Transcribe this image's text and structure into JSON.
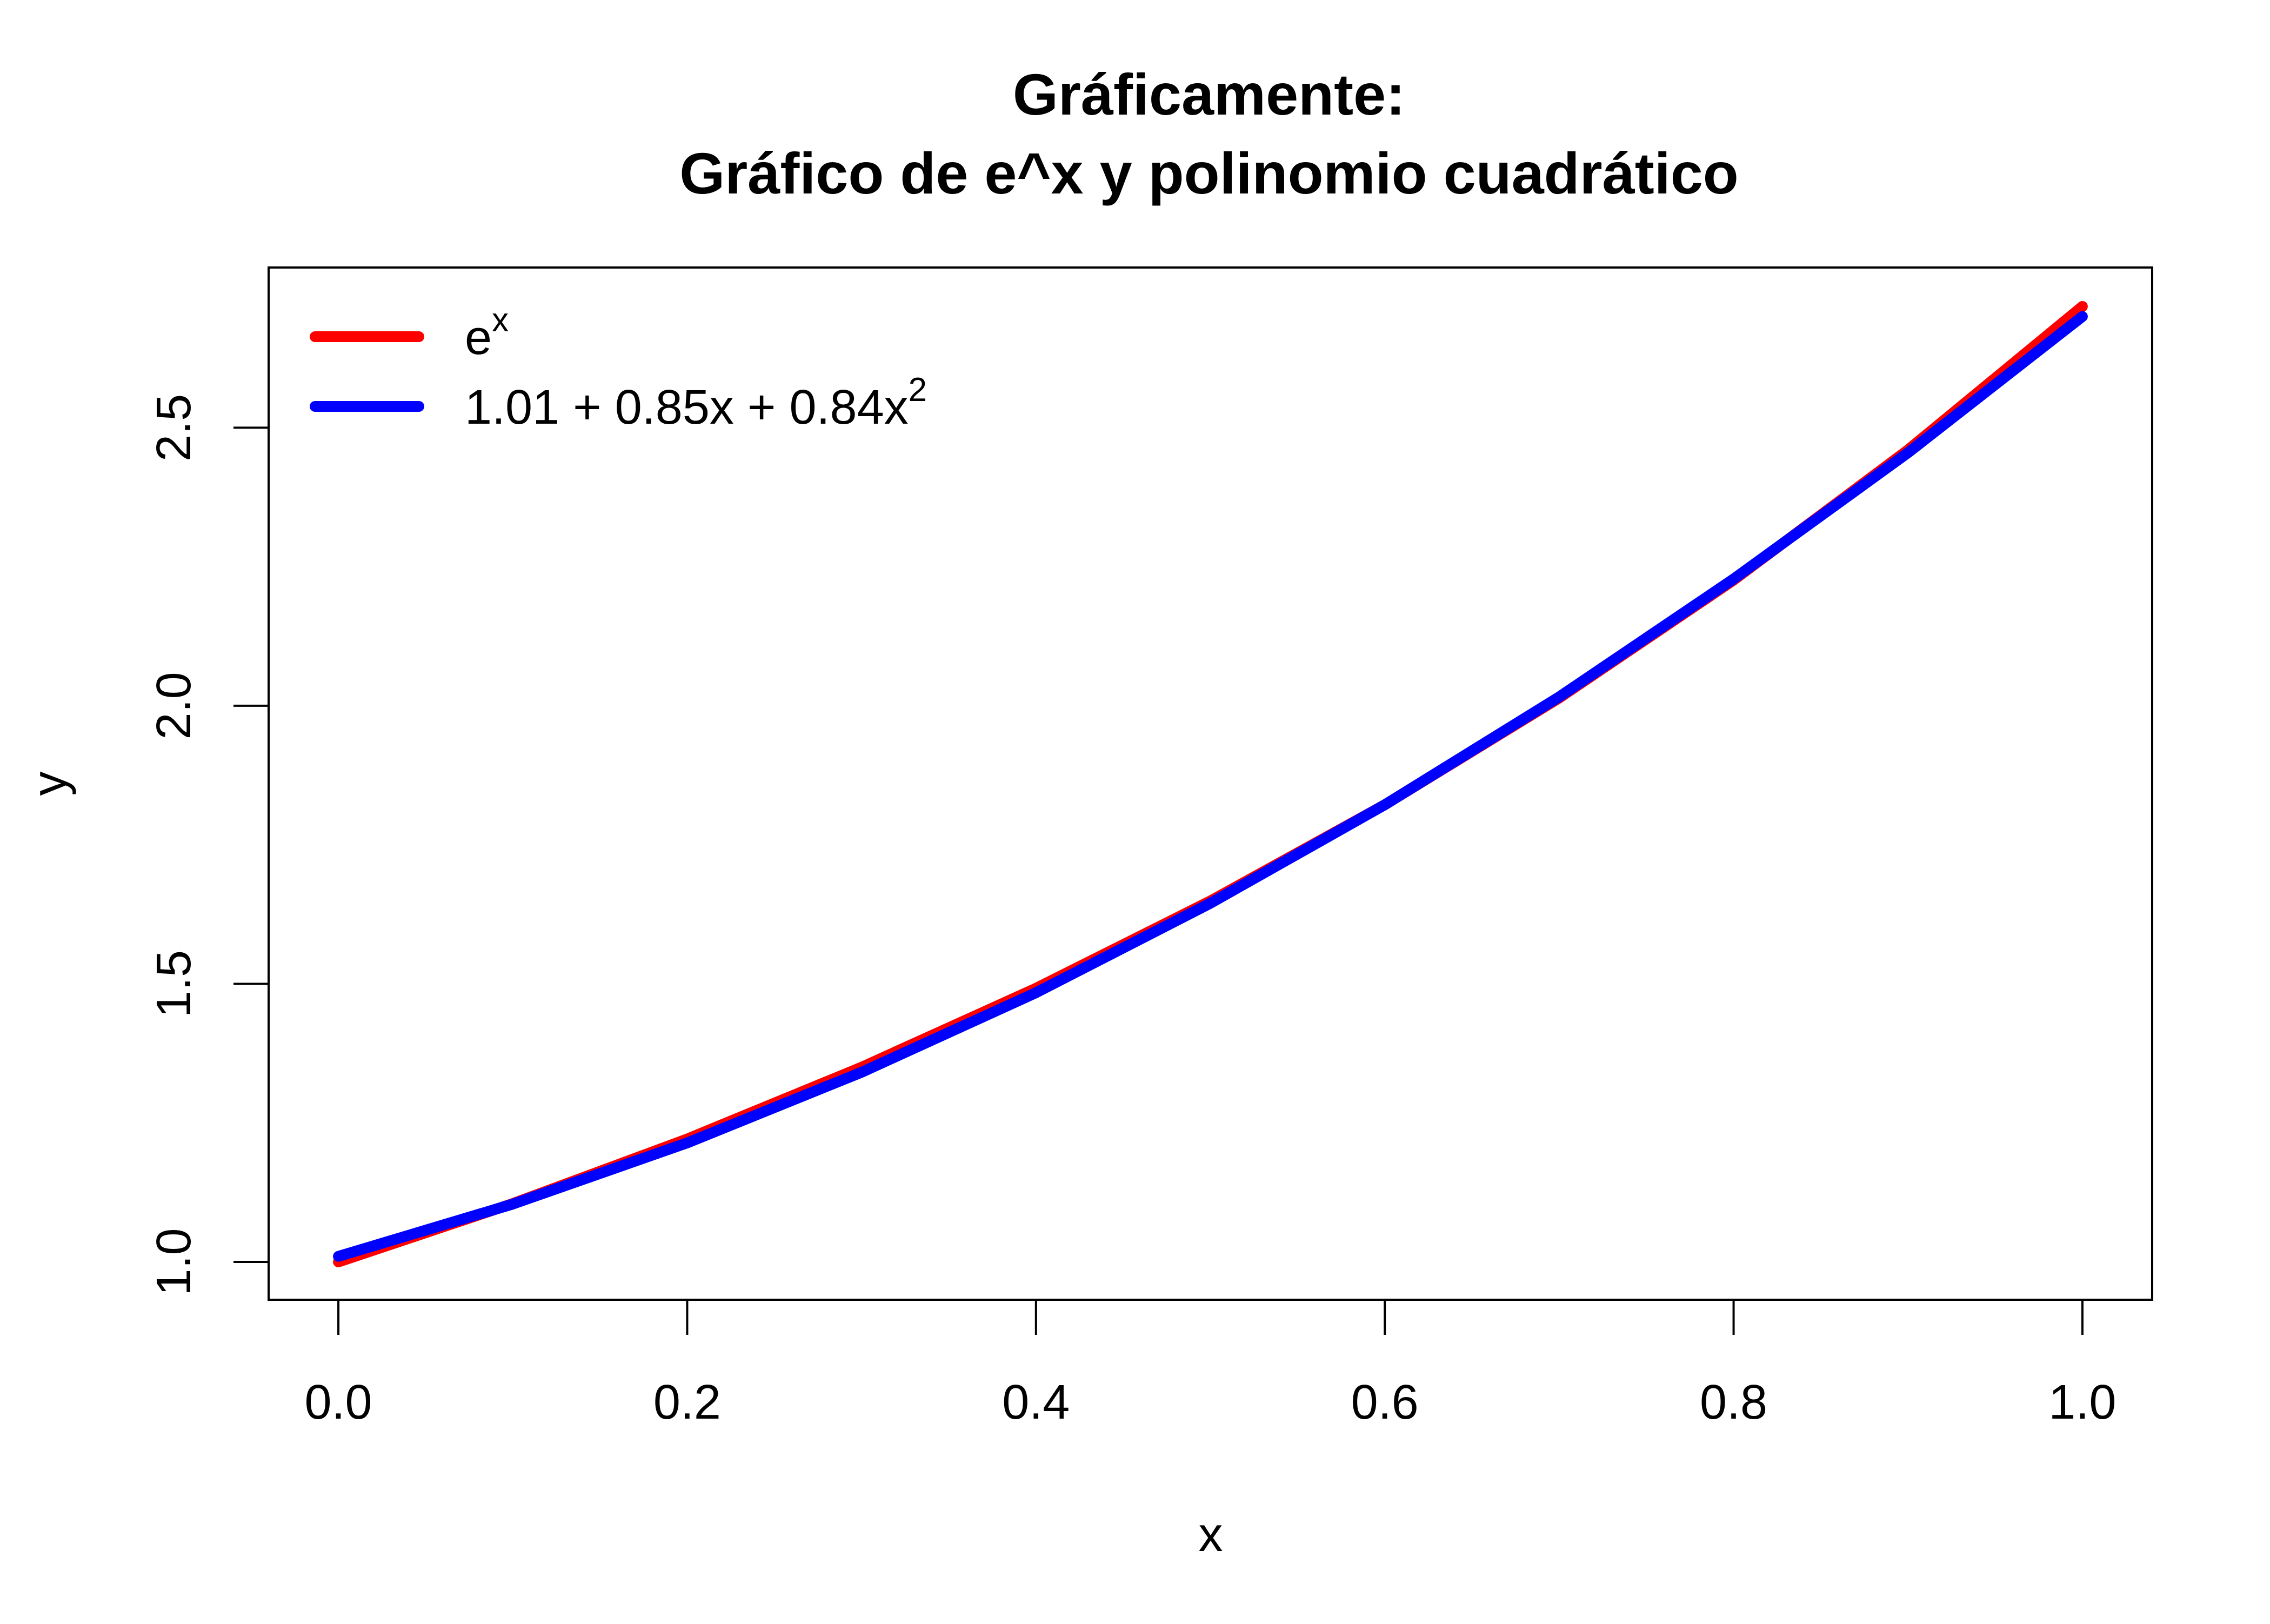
{
  "chart_data": {
    "type": "line",
    "title": [
      "Gráficamente:",
      "Gráfico de e^x y polinomio cuadrático"
    ],
    "xlabel": "x",
    "ylabel": "y",
    "xlim": [
      -0.04,
      1.04
    ],
    "ylim": [
      0.932,
      2.788
    ],
    "x_ticks": [
      0.0,
      0.2,
      0.4,
      0.6,
      0.8,
      1.0
    ],
    "x_tick_labels": [
      "0.0",
      "0.2",
      "0.4",
      "0.6",
      "0.8",
      "1.0"
    ],
    "y_ticks": [
      1.0,
      1.5,
      2.0,
      2.5
    ],
    "y_tick_labels": [
      "1.0",
      "1.5",
      "2.0",
      "2.5"
    ],
    "grid": false,
    "legend_position": "top-left",
    "x": [
      0.0,
      0.1,
      0.2,
      0.3,
      0.4,
      0.5,
      0.6,
      0.7,
      0.8,
      0.9,
      1.0
    ],
    "series": [
      {
        "name": "e^x",
        "legend": {
          "base": "e",
          "sup": "x"
        },
        "color": "#ff0000",
        "values": [
          1.0,
          1.105,
          1.221,
          1.35,
          1.492,
          1.649,
          1.822,
          2.014,
          2.226,
          2.46,
          2.718
        ]
      },
      {
        "name": "1.01 + 0.85x + 0.84x^2",
        "legend": {
          "base": "1.01 + 0.85x + 0.84x",
          "sup": "2"
        },
        "color": "#0000ff",
        "values": [
          1.01,
          1.104,
          1.214,
          1.341,
          1.484,
          1.645,
          1.822,
          2.016,
          2.228,
          2.455,
          2.7
        ]
      }
    ]
  }
}
